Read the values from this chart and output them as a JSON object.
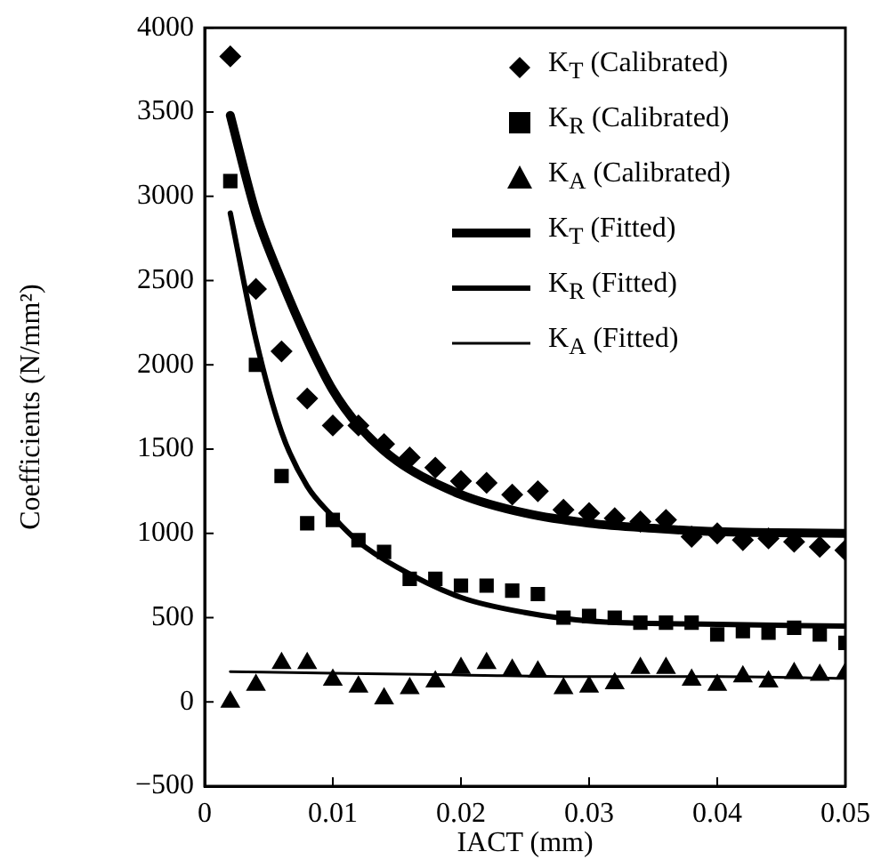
{
  "chart_data": {
    "type": "scatter",
    "xlabel": "IACT (mm)",
    "ylabel": "Coefficients (N/mm²)",
    "xlim": [
      0,
      0.05
    ],
    "xticks": [
      0,
      0.01,
      0.02,
      0.03,
      0.04,
      0.05
    ],
    "ylim": [
      -500,
      4000
    ],
    "yticks": [
      -500,
      0,
      500,
      1000,
      1500,
      2000,
      2500,
      3000,
      3500,
      4000
    ],
    "grid": false,
    "legend": "top right",
    "series": [
      {
        "name": "K$_{T}$ (Calibrated)",
        "type": "scatter",
        "marker": "diamond",
        "color": "#000000",
        "x": [
          0.002,
          0.004,
          0.006,
          0.008,
          0.01,
          0.012,
          0.014,
          0.016,
          0.018,
          0.02,
          0.022,
          0.024,
          0.026,
          0.028,
          0.03,
          0.032,
          0.034,
          0.036,
          0.038,
          0.04,
          0.042,
          0.044,
          0.046,
          0.048,
          0.05
        ],
        "values": [
          3830,
          2450,
          2080,
          1800,
          1640,
          1640,
          1530,
          1450,
          1390,
          1310,
          1300,
          1230,
          1250,
          1140,
          1120,
          1090,
          1070,
          1080,
          980,
          1000,
          960,
          970,
          950,
          920,
          900
        ]
      },
      {
        "name": "K$_{R}$ (Calibrated)",
        "type": "scatter",
        "marker": "square",
        "color": "#000000",
        "x": [
          0.002,
          0.004,
          0.006,
          0.008,
          0.01,
          0.012,
          0.014,
          0.016,
          0.018,
          0.02,
          0.022,
          0.024,
          0.026,
          0.028,
          0.03,
          0.032,
          0.034,
          0.036,
          0.038,
          0.04,
          0.042,
          0.044,
          0.046,
          0.048,
          0.05
        ],
        "values": [
          3090,
          2000,
          1340,
          1060,
          1080,
          960,
          890,
          730,
          730,
          690,
          690,
          660,
          640,
          500,
          510,
          500,
          470,
          470,
          470,
          400,
          420,
          410,
          440,
          400,
          350
        ]
      },
      {
        "name": "K$_{A}$ (Calibrated)",
        "type": "scatter",
        "marker": "triangle",
        "color": "#000000",
        "x": [
          0.002,
          0.004,
          0.006,
          0.008,
          0.01,
          0.012,
          0.014,
          0.016,
          0.018,
          0.02,
          0.022,
          0.024,
          0.026,
          0.028,
          0.03,
          0.032,
          0.034,
          0.036,
          0.038,
          0.04,
          0.042,
          0.044,
          0.046,
          0.048,
          0.05
        ],
        "values": [
          0,
          100,
          230,
          230,
          130,
          90,
          20,
          80,
          120,
          200,
          230,
          190,
          180,
          80,
          90,
          110,
          200,
          200,
          130,
          100,
          150,
          120,
          170,
          160,
          170
        ]
      },
      {
        "name": "K$_{T}$ (Fitted)",
        "type": "line",
        "marker": "none",
        "line_style": "solid",
        "color": "#000000",
        "x": [
          0.002,
          0.004,
          0.006,
          0.008,
          0.01,
          0.012,
          0.015,
          0.02,
          0.025,
          0.03,
          0.035,
          0.04,
          0.05
        ],
        "values": [
          3480,
          2900,
          2500,
          2150,
          1850,
          1640,
          1430,
          1230,
          1120,
          1060,
          1030,
          1010,
          1000
        ]
      },
      {
        "name": "K$_{R}$ (Fitted)",
        "type": "line",
        "marker": "none",
        "line_style": "solid",
        "color": "#000000",
        "x": [
          0.002,
          0.004,
          0.006,
          0.008,
          0.01,
          0.012,
          0.015,
          0.02,
          0.025,
          0.03,
          0.04,
          0.05
        ],
        "values": [
          2900,
          2150,
          1600,
          1280,
          1100,
          950,
          800,
          620,
          530,
          480,
          460,
          450
        ]
      },
      {
        "name": "K$_{A}$ (Fitted)",
        "type": "line",
        "marker": "none",
        "line_style": "solid",
        "color": "#000000",
        "x": [
          0.002,
          0.01,
          0.02,
          0.03,
          0.04,
          0.05
        ],
        "values": [
          180,
          170,
          160,
          150,
          150,
          140
        ]
      }
    ]
  }
}
